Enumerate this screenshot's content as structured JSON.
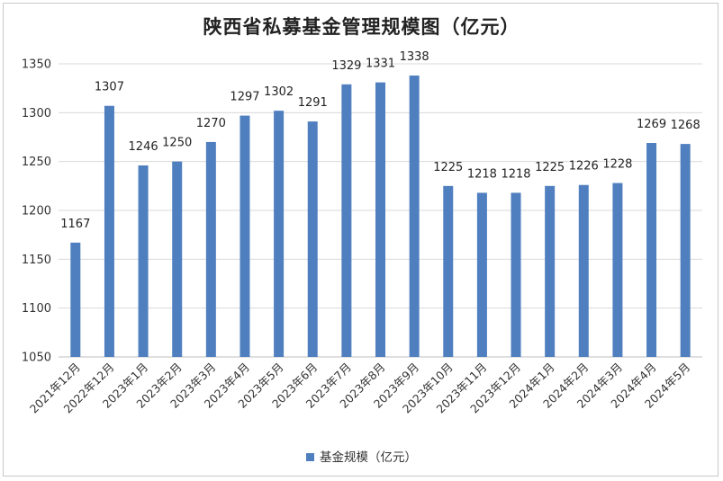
{
  "chart_data": {
    "type": "bar",
    "title": "陕西省私募基金管理规模图（亿元）",
    "categories": [
      "2021年12月",
      "2022年12月",
      "2023年1月",
      "2023年2月",
      "2023年3月",
      "2023年4月",
      "2023年5月",
      "2023年6月",
      "2023年7月",
      "2023年8月",
      "2023年9月",
      "2023年10月",
      "2023年11月",
      "2023年12月",
      "2024年1月",
      "2024年2月",
      "2024年3月",
      "2024年4月",
      "2024年5月"
    ],
    "series": [
      {
        "name": "基金规模（亿元）",
        "color": "#4f7fbf",
        "values": [
          1167,
          1307,
          1246,
          1250,
          1270,
          1297,
          1302,
          1291,
          1329,
          1331,
          1338,
          1225,
          1218,
          1218,
          1225,
          1226,
          1228,
          1269,
          1268
        ]
      }
    ],
    "ylim": [
      1050,
      1350
    ],
    "yticks": [
      1050,
      1100,
      1150,
      1200,
      1250,
      1300,
      1350
    ],
    "grid": true,
    "legend_position": "bottom",
    "xlabel": "",
    "ylabel": ""
  }
}
